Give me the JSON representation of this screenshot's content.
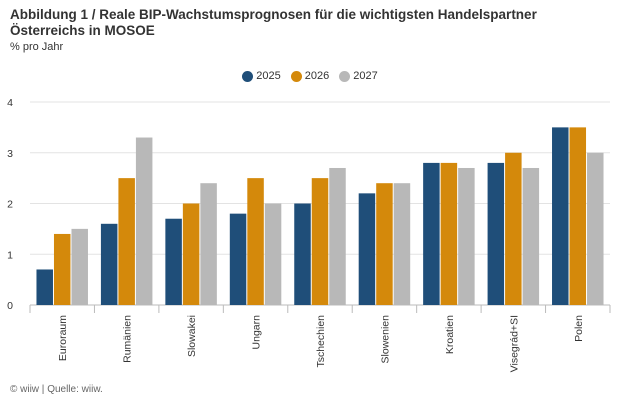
{
  "title": "Abbildung 1 / Reale BIP-Wachstumsprognosen für die wichtigsten Handelspartner Österreichs in MOSOE",
  "subtitle": "% pro Jahr",
  "footer": "© wiiw | Quelle: wiiw.",
  "chart_data": {
    "type": "bar",
    "categories": [
      "Euroraum",
      "Rumänien",
      "Slowakei",
      "Ungarn",
      "Tschechien",
      "Slowenien",
      "Kroatien",
      "Visegrád+SI",
      "Polen"
    ],
    "series": [
      {
        "name": "2025",
        "color": "#1f4e79",
        "values": [
          0.7,
          1.6,
          1.7,
          1.8,
          2.0,
          2.2,
          2.8,
          2.8,
          3.5
        ]
      },
      {
        "name": "2026",
        "color": "#d4890b",
        "values": [
          1.4,
          2.5,
          2.0,
          2.5,
          2.5,
          2.4,
          2.8,
          3.0,
          3.5
        ]
      },
      {
        "name": "2027",
        "color": "#b8b8b8",
        "values": [
          1.5,
          3.3,
          2.4,
          2.0,
          2.7,
          2.4,
          2.7,
          2.7,
          3.0
        ]
      }
    ],
    "ylim": [
      0,
      4
    ],
    "yticks": [
      0,
      1,
      2,
      3,
      4
    ],
    "legend_position": "top-center",
    "grid": true
  }
}
